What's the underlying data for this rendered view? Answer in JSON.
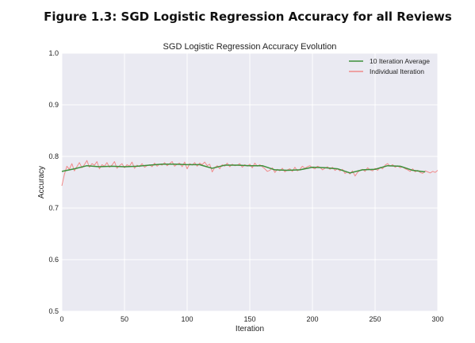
{
  "figure_caption": "Figure 1.3: SGD Logistic Regression Accuracy for all Reviews",
  "colors": {
    "plot_background": "#eaeaf2",
    "grid": "#ffffff",
    "average_line": "#3d8f3a",
    "individual_line": "#f08a8a"
  },
  "chart_data": {
    "type": "line",
    "title": "SGD Logistic Regression Accuracy Evolution",
    "xlabel": "Iteration",
    "ylabel": "Accuracy",
    "xlim": [
      0,
      300
    ],
    "ylim": [
      0.5,
      1.0
    ],
    "xticks": [
      "0",
      "50",
      "100",
      "150",
      "200",
      "250",
      "300"
    ],
    "xtick_values": [
      0,
      50,
      100,
      150,
      200,
      250,
      300
    ],
    "yticks": [
      "0.5",
      "0.6",
      "0.7",
      "0.8",
      "0.9",
      "1.0"
    ],
    "ytick_values": [
      0.5,
      0.6,
      0.7,
      0.8,
      0.9,
      1.0
    ],
    "grid": true,
    "legend_position": "top-right",
    "series": [
      {
        "name": "10 Iteration Average",
        "color": "#3d8f3a",
        "x": [
          0,
          10,
          20,
          30,
          40,
          50,
          60,
          70,
          80,
          90,
          100,
          110,
          120,
          130,
          140,
          150,
          160,
          170,
          180,
          190,
          200,
          210,
          220,
          230,
          240,
          250,
          260,
          270,
          280,
          290
        ],
        "y": [
          0.771,
          0.776,
          0.782,
          0.78,
          0.781,
          0.78,
          0.781,
          0.783,
          0.785,
          0.785,
          0.784,
          0.784,
          0.777,
          0.783,
          0.783,
          0.782,
          0.782,
          0.774,
          0.773,
          0.774,
          0.779,
          0.778,
          0.776,
          0.768,
          0.774,
          0.775,
          0.782,
          0.781,
          0.773,
          0.77
        ]
      },
      {
        "name": "Individual Iteration",
        "color": "#f08a8a",
        "x": [
          0,
          2,
          4,
          6,
          8,
          10,
          12,
          14,
          16,
          18,
          20,
          22,
          24,
          26,
          28,
          30,
          32,
          34,
          36,
          38,
          40,
          42,
          44,
          46,
          48,
          50,
          52,
          54,
          56,
          58,
          60,
          62,
          64,
          66,
          68,
          70,
          72,
          74,
          76,
          78,
          80,
          82,
          84,
          86,
          88,
          90,
          92,
          94,
          96,
          98,
          100,
          102,
          104,
          106,
          108,
          110,
          112,
          114,
          116,
          118,
          120,
          122,
          124,
          126,
          128,
          130,
          132,
          134,
          136,
          138,
          140,
          142,
          144,
          146,
          148,
          150,
          152,
          154,
          156,
          158,
          160,
          162,
          164,
          166,
          168,
          170,
          172,
          174,
          176,
          178,
          180,
          182,
          184,
          186,
          188,
          190,
          192,
          194,
          196,
          198,
          200,
          202,
          204,
          206,
          208,
          210,
          212,
          214,
          216,
          218,
          220,
          222,
          224,
          226,
          228,
          230,
          232,
          234,
          236,
          238,
          240,
          242,
          244,
          246,
          248,
          250,
          252,
          254,
          256,
          258,
          260,
          262,
          264,
          266,
          268,
          270,
          272,
          274,
          276,
          278,
          280,
          282,
          284,
          286,
          288,
          290,
          292,
          294,
          296,
          298,
          300
        ],
        "y": [
          0.743,
          0.765,
          0.781,
          0.775,
          0.786,
          0.772,
          0.78,
          0.788,
          0.778,
          0.784,
          0.792,
          0.779,
          0.786,
          0.783,
          0.79,
          0.776,
          0.784,
          0.781,
          0.788,
          0.779,
          0.783,
          0.79,
          0.777,
          0.782,
          0.786,
          0.778,
          0.784,
          0.781,
          0.789,
          0.777,
          0.783,
          0.78,
          0.786,
          0.779,
          0.782,
          0.784,
          0.78,
          0.787,
          0.781,
          0.785,
          0.783,
          0.788,
          0.782,
          0.786,
          0.79,
          0.781,
          0.785,
          0.787,
          0.78,
          0.789,
          0.776,
          0.786,
          0.783,
          0.788,
          0.781,
          0.787,
          0.784,
          0.789,
          0.782,
          0.785,
          0.77,
          0.778,
          0.782,
          0.776,
          0.784,
          0.781,
          0.787,
          0.78,
          0.785,
          0.782,
          0.783,
          0.786,
          0.779,
          0.784,
          0.781,
          0.785,
          0.778,
          0.787,
          0.781,
          0.784,
          0.78,
          0.776,
          0.771,
          0.773,
          0.778,
          0.769,
          0.775,
          0.772,
          0.777,
          0.77,
          0.774,
          0.776,
          0.771,
          0.779,
          0.772,
          0.775,
          0.781,
          0.777,
          0.78,
          0.782,
          0.778,
          0.776,
          0.781,
          0.779,
          0.774,
          0.777,
          0.78,
          0.775,
          0.779,
          0.773,
          0.776,
          0.772,
          0.775,
          0.767,
          0.77,
          0.766,
          0.772,
          0.762,
          0.769,
          0.773,
          0.775,
          0.771,
          0.778,
          0.774,
          0.772,
          0.777,
          0.773,
          0.779,
          0.776,
          0.783,
          0.786,
          0.781,
          0.784,
          0.779,
          0.782,
          0.778,
          0.78,
          0.776,
          0.774,
          0.771,
          0.776,
          0.77,
          0.773,
          0.769,
          0.767,
          0.772,
          0.77,
          0.768,
          0.771,
          0.769,
          0.773
        ]
      }
    ]
  }
}
